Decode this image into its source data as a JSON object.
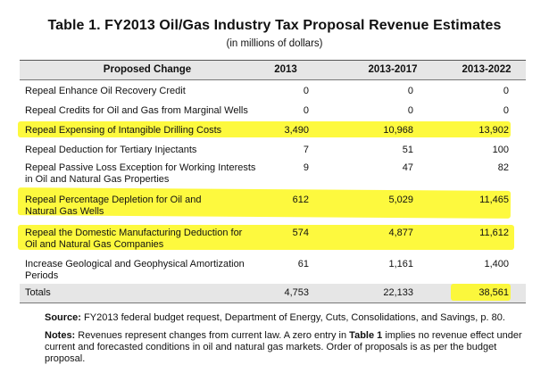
{
  "table": {
    "title": "Table 1. FY2013 Oil/Gas Industry Tax Proposal Revenue Estimates",
    "subtitle": "(in millions of dollars)",
    "headers": [
      "Proposed Change",
      "2013",
      "2013-2017",
      "2013-2022"
    ],
    "rows": [
      {
        "change": "Repeal Enhance Oil Recovery Credit",
        "v2013": "0",
        "v2017": "0",
        "v2022": "0",
        "highlighted": false
      },
      {
        "change": "Repeal Credits for Oil and Gas from Marginal Wells",
        "v2013": "0",
        "v2017": "0",
        "v2022": "0",
        "highlighted": false
      },
      {
        "change": "Repeal Expensing of Intangible Drilling Costs",
        "v2013": "3,490",
        "v2017": "10,968",
        "v2022": "13,902",
        "highlighted": true
      },
      {
        "change": "Repeal Deduction for Tertiary Injectants",
        "v2013": "7",
        "v2017": "51",
        "v2022": "100",
        "highlighted": false
      },
      {
        "change": "Repeal Passive Loss Exception for Working Interests in Oil and Natural Gas Properties",
        "v2013": "9",
        "v2017": "47",
        "v2022": "82",
        "highlighted": false
      },
      {
        "change": "Repeal Percentage Depletion for Oil and Natural Gas Wells",
        "v2013": "612",
        "v2017": "5,029",
        "v2022": "11,465",
        "highlighted": true
      },
      {
        "change": "Repeal the Domestic Manufacturing Deduction for Oil and Natural Gas Companies",
        "v2013": "574",
        "v2017": "4,877",
        "v2022": "11,612",
        "highlighted": true
      },
      {
        "change": "Increase Geological and Geophysical Amortization Periods",
        "v2013": "61",
        "v2017": "1,161",
        "v2022": "1,400",
        "highlighted": false
      }
    ],
    "totals": {
      "label": "Totals",
      "v2013": "4,753",
      "v2017": "22,133",
      "v2022": "38,561",
      "v2022_highlighted": true
    }
  },
  "source": {
    "label": "Source:",
    "text": " FY2013 federal budget request, Department of Energy, Cuts, Consolidations, and Savings, p. 80."
  },
  "notes": {
    "label": "Notes:",
    "text_a": " Revenues represent changes from current law. A zero entry in ",
    "ref": "Table 1",
    "text_b": " implies no revenue effect under current and forecasted conditions in oil and natural gas markets. Order of proposals is as per the budget proposal."
  },
  "colors": {
    "highlight": "#fdf82e",
    "header_band": "#e6e6e6"
  }
}
